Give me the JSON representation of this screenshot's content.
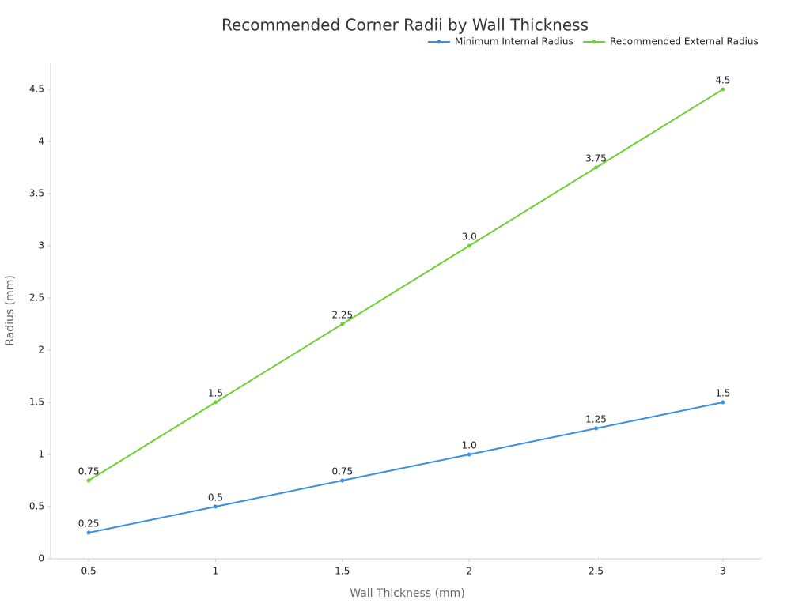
{
  "chart_data": {
    "type": "line",
    "title": "Recommended Corner Radii by Wall Thickness",
    "x_label": "Wall Thickness (mm)",
    "y_label": "Radius (mm)",
    "x": [
      0.5,
      1,
      1.5,
      2,
      2.5,
      3
    ],
    "series": [
      {
        "name": "Minimum Internal Radius",
        "color": "#3a8fe0",
        "values": [
          0.25,
          0.5,
          0.75,
          1.0,
          1.25,
          1.5
        ],
        "value_labels": [
          "0.25",
          "0.5",
          "0.75",
          "1.0",
          "1.25",
          "1.5"
        ]
      },
      {
        "name": "Recommended External Radius",
        "color": "#6cd132",
        "values": [
          0.75,
          1.5,
          2.25,
          3.0,
          3.75,
          4.5
        ],
        "value_labels": [
          "0.75",
          "1.5",
          "2.25",
          "3.0",
          "3.75",
          "4.5"
        ]
      }
    ],
    "xlim": [
      0.35,
      3.15
    ],
    "xticks": [
      0.5,
      1,
      1.5,
      2,
      2.5,
      3
    ],
    "ylim": [
      0,
      4.75
    ],
    "yticks": [
      0,
      0.5,
      1,
      1.5,
      2,
      2.5,
      3,
      3.5,
      4,
      4.5
    ],
    "grid": false,
    "legend": "top-right"
  }
}
